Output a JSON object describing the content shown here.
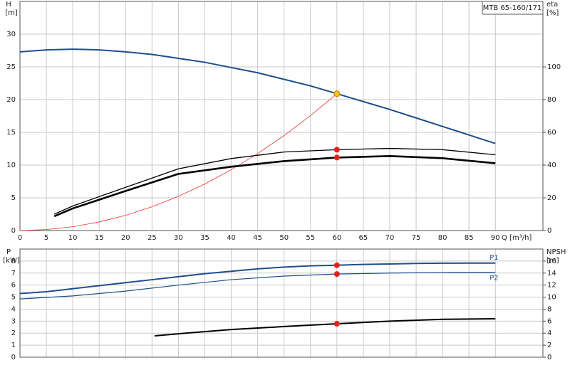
{
  "chart_data": [
    {
      "type": "line",
      "title": "MTB 65-160/171",
      "ylabel": "H",
      "yunit": "[m]",
      "y2label": "eta",
      "y2unit": "[%]",
      "xlabel": "Q [m³/h]",
      "xlim": [
        0,
        99
      ],
      "xticks": [
        0,
        5,
        10,
        15,
        20,
        25,
        30,
        35,
        40,
        45,
        50,
        55,
        60,
        65,
        70,
        75,
        80,
        85,
        90
      ],
      "ylim": [
        0,
        35
      ],
      "yticks": [
        0,
        5,
        10,
        15,
        20,
        25,
        30
      ],
      "y2lim": [
        0,
        140
      ],
      "y2ticks": [
        0,
        20,
        40,
        60,
        80,
        100
      ],
      "grid": true,
      "series": [
        {
          "color": "#1f4e8c",
          "line_width": 2,
          "x": [
            0,
            5,
            10,
            15,
            20,
            25,
            30,
            35,
            40,
            45,
            50,
            55,
            60,
            65,
            70,
            75,
            80,
            85,
            90
          ],
          "values": [
            27.3,
            27.6,
            27.7,
            27.6,
            27.3,
            26.9,
            26.3,
            25.7,
            24.9,
            24.1,
            23.1,
            22.1,
            20.9,
            19.7,
            18.5,
            17.2,
            15.9,
            14.6,
            13.3
          ]
        },
        {
          "color": "#e8322d",
          "line_width": 0.8,
          "x": [
            0,
            5,
            10,
            15,
            20,
            25,
            30,
            35,
            40,
            45,
            50,
            55,
            60
          ],
          "values": [
            0,
            0.15,
            0.58,
            1.31,
            2.32,
            3.63,
            5.23,
            7.11,
            9.29,
            11.76,
            14.51,
            17.56,
            20.9
          ]
        },
        {
          "color": "#000000",
          "line_width": 1.3,
          "axis": "y2",
          "x": [
            6.5,
            10,
            20,
            30,
            40,
            50,
            60,
            70,
            80,
            90
          ],
          "values": [
            10,
            15,
            26.4,
            37.7,
            44,
            48,
            49.4,
            50.2,
            49.4,
            46.3
          ]
        },
        {
          "color": "#000000",
          "line_width": 2.6,
          "axis": "y2",
          "x": [
            6.5,
            10,
            20,
            30,
            40,
            50,
            60,
            70,
            80,
            90
          ],
          "values": [
            8.7,
            13.5,
            24.2,
            34.6,
            39,
            42.4,
            44.6,
            45.5,
            44.2,
            41.1
          ]
        }
      ],
      "markers": [
        {
          "x": 60,
          "y": 20.9,
          "color": "#f5c518"
        },
        {
          "x": 60,
          "y": 49.4,
          "color": "#e8201c",
          "axis": "y2"
        },
        {
          "x": 60,
          "y": 44.6,
          "color": "#e8201c",
          "axis": "y2"
        }
      ]
    },
    {
      "type": "line",
      "ylabel": "P",
      "yunit": "[kW]",
      "y2label": "NPSH",
      "y2unit": "[m]",
      "xlim": [
        0,
        99
      ],
      "xticks": [
        0,
        5,
        10,
        15,
        20,
        25,
        30,
        35,
        40,
        45,
        50,
        55,
        60,
        65,
        70,
        75,
        80,
        85,
        90
      ],
      "ylim": [
        0,
        9
      ],
      "yticks": [
        0,
        1,
        2,
        3,
        4,
        5,
        6,
        7,
        8
      ],
      "y2lim": [
        0,
        18
      ],
      "y2ticks": [
        0,
        2,
        4,
        6,
        8,
        10,
        12,
        14,
        16
      ],
      "grid": true,
      "series": [
        {
          "name": "P1",
          "color": "#1f4e8c",
          "line_width": 2,
          "x": [
            0,
            5,
            10,
            15,
            20,
            25,
            30,
            35,
            40,
            45,
            50,
            55,
            60,
            65,
            70,
            75,
            80,
            85,
            90
          ],
          "values": [
            5.3,
            5.45,
            5.7,
            5.95,
            6.2,
            6.45,
            6.7,
            6.95,
            7.15,
            7.35,
            7.5,
            7.6,
            7.65,
            7.72,
            7.76,
            7.8,
            7.82,
            7.83,
            7.83
          ]
        },
        {
          "name": "P2",
          "color": "#1f4e8c",
          "line_width": 1.2,
          "x": [
            0,
            10,
            20,
            30,
            40,
            50,
            60,
            70,
            80,
            90
          ],
          "values": [
            4.85,
            5.1,
            5.5,
            6.0,
            6.45,
            6.75,
            6.92,
            7.0,
            7.05,
            7.07
          ]
        },
        {
          "color": "#000000",
          "line_width": 2,
          "axis": "y2",
          "x": [
            25.5,
            30,
            40,
            50,
            60,
            70,
            80,
            90
          ],
          "values": [
            3.55,
            3.9,
            4.6,
            5.1,
            5.56,
            6.0,
            6.3,
            6.4
          ]
        }
      ],
      "markers": [
        {
          "x": 60,
          "y": 7.65,
          "color": "#e8201c"
        },
        {
          "x": 60,
          "y": 6.92,
          "color": "#e8201c"
        },
        {
          "x": 60,
          "y": 5.56,
          "color": "#e8201c",
          "axis": "y2"
        }
      ]
    }
  ]
}
